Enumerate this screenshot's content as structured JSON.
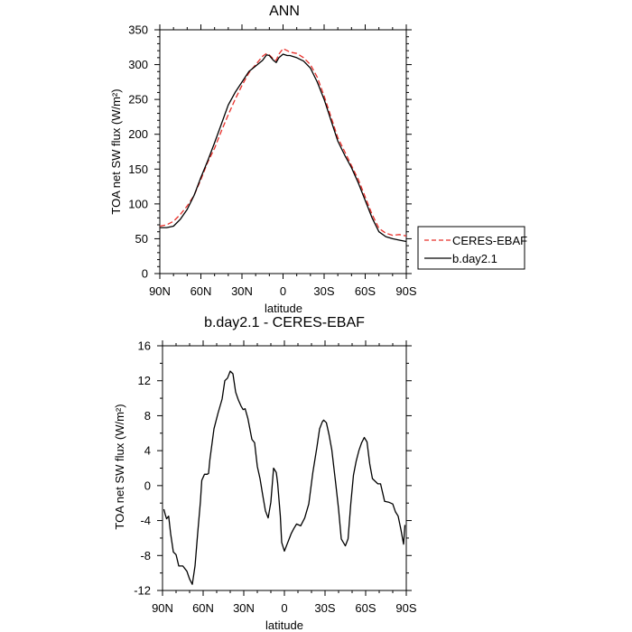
{
  "chart_data": [
    {
      "type": "line",
      "title": "ANN",
      "xlabel": "latitude",
      "ylabel": "TOA net SW flux (W/m²)",
      "xlim": [
        90,
        -90
      ],
      "ylim": [
        0,
        350
      ],
      "x_ticks": [
        {
          "value": 90,
          "label": "90N"
        },
        {
          "value": 60,
          "label": "60N"
        },
        {
          "value": 30,
          "label": "30N"
        },
        {
          "value": 0,
          "label": "0"
        },
        {
          "value": -30,
          "label": "30S"
        },
        {
          "value": -60,
          "label": "60S"
        },
        {
          "value": -90,
          "label": "90S"
        }
      ],
      "y_ticks": [
        0,
        50,
        100,
        150,
        200,
        250,
        300,
        350
      ],
      "legend_position": "right",
      "series": [
        {
          "name": "CERES-EBAF",
          "color": "#e8302b",
          "dash": "dashed",
          "x": [
            90,
            85,
            80,
            75,
            70,
            65,
            60,
            55,
            50,
            45,
            40,
            35,
            30,
            25,
            20,
            15,
            12,
            10,
            7,
            5,
            3,
            0,
            -3,
            -5,
            -10,
            -15,
            -20,
            -25,
            -30,
            -35,
            -40,
            -45,
            -50,
            -55,
            -60,
            -65,
            -70,
            -75,
            -80,
            -85,
            -90
          ],
          "y": [
            68,
            70,
            75,
            85,
            97,
            112,
            135,
            160,
            180,
            205,
            228,
            250,
            270,
            288,
            300,
            312,
            316,
            314,
            308,
            306,
            315,
            323,
            320,
            318,
            316,
            310,
            300,
            282,
            255,
            225,
            195,
            175,
            155,
            135,
            110,
            85,
            65,
            58,
            55,
            56,
            54
          ]
        },
        {
          "name": "b.day2.1",
          "color": "#000000",
          "dash": "solid",
          "x": [
            90,
            85,
            80,
            75,
            70,
            65,
            60,
            55,
            50,
            45,
            40,
            35,
            30,
            25,
            20,
            15,
            12,
            10,
            7,
            5,
            3,
            0,
            -3,
            -5,
            -10,
            -15,
            -20,
            -25,
            -30,
            -35,
            -40,
            -45,
            -50,
            -55,
            -60,
            -65,
            -70,
            -75,
            -80,
            -85,
            -90
          ],
          "y": [
            66,
            66,
            68,
            78,
            92,
            112,
            138,
            162,
            188,
            215,
            242,
            260,
            275,
            290,
            298,
            306,
            314,
            313,
            306,
            303,
            310,
            315,
            313,
            313,
            310,
            305,
            295,
            275,
            250,
            220,
            190,
            170,
            152,
            130,
            105,
            80,
            60,
            53,
            50,
            48,
            46
          ]
        }
      ]
    },
    {
      "type": "line",
      "title": "b.day2.1 - CERES-EBAF",
      "xlabel": "latitude",
      "ylabel": "TOA net SW flux (W/m²)",
      "xlim": [
        90,
        -90
      ],
      "ylim": [
        -12,
        16
      ],
      "x_ticks": [
        {
          "value": 90,
          "label": "90N"
        },
        {
          "value": 60,
          "label": "60N"
        },
        {
          "value": 30,
          "label": "30N"
        },
        {
          "value": 0,
          "label": "0"
        },
        {
          "value": -30,
          "label": "30S"
        },
        {
          "value": -60,
          "label": "60S"
        },
        {
          "value": -90,
          "label": "90S"
        }
      ],
      "y_ticks": [
        -12,
        -8,
        -4,
        0,
        4,
        8,
        12,
        16
      ],
      "series": [
        {
          "name": "",
          "color": "#000000",
          "dash": "solid",
          "x": [
            89,
            88,
            87,
            85.5,
            84,
            82,
            80,
            78,
            75,
            72,
            70,
            68,
            66,
            64,
            62,
            61,
            59,
            57,
            56,
            55,
            52,
            49,
            46,
            44,
            42,
            40,
            38,
            36,
            34,
            32,
            30.5,
            29,
            27,
            24,
            22,
            20,
            18,
            16,
            14,
            12,
            10,
            8,
            6,
            5,
            3,
            2,
            0,
            -2,
            -4,
            -5,
            -7,
            -9,
            -12,
            -15,
            -18,
            -21,
            -24,
            -26,
            -28,
            -29,
            -31,
            -33,
            -35,
            -38,
            -40,
            -42,
            -45,
            -47,
            -49,
            -51,
            -53,
            -55,
            -57,
            -59,
            -61,
            -63,
            -65,
            -67,
            -69,
            -71,
            -74,
            -77,
            -80,
            -82,
            -84,
            -86,
            -88,
            -89
          ],
          "y": [
            -2.7,
            -3.3,
            -3.8,
            -3.5,
            -5.5,
            -7.6,
            -7.9,
            -9.2,
            -9.2,
            -9.8,
            -10.7,
            -11.3,
            -9.2,
            -5.4,
            -1.8,
            0.6,
            1.3,
            1.3,
            1.4,
            3.0,
            6.5,
            8.3,
            9.9,
            12.0,
            12.3,
            13.1,
            12.8,
            10.7,
            9.8,
            9.1,
            8.7,
            8.8,
            7.7,
            5.3,
            4.9,
            2.2,
            0.8,
            -1.1,
            -2.9,
            -3.7,
            -1.9,
            2.0,
            1.5,
            0.3,
            -3.5,
            -6.5,
            -7.5,
            -6.7,
            -5.9,
            -5.5,
            -4.9,
            -4.4,
            -4.6,
            -3.7,
            -2.1,
            1.5,
            4.4,
            6.5,
            7.3,
            7.5,
            7.2,
            5.8,
            4.1,
            0.1,
            -2.7,
            -6.1,
            -6.9,
            -6.1,
            -2.1,
            1.2,
            2.8,
            4.0,
            4.9,
            5.5,
            5.0,
            2.5,
            0.8,
            0.5,
            0.2,
            0.2,
            -1.8,
            -1.9,
            -2.1,
            -3.0,
            -3.5,
            -5.0,
            -6.7,
            -4.5
          ]
        }
      ]
    }
  ]
}
